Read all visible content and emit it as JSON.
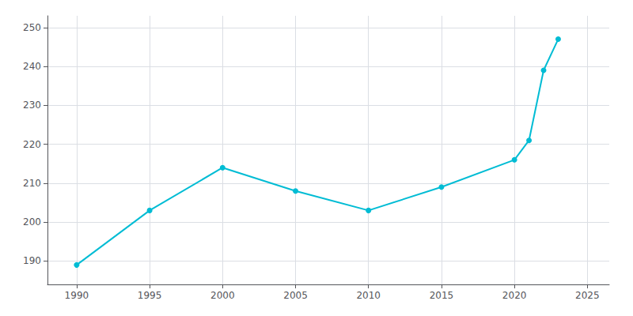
{
  "chart_data": {
    "type": "line",
    "x": [
      1990,
      1995,
      2000,
      2005,
      2010,
      2015,
      2020,
      2021,
      2022,
      2023
    ],
    "values": [
      189,
      203,
      214,
      208,
      203,
      209,
      216,
      221,
      239,
      247
    ],
    "color": "#00bcd4",
    "marker": "circle",
    "xlim": [
      1988,
      2026.5
    ],
    "ylim": [
      184,
      253
    ],
    "xticks": [
      1990,
      1995,
      2000,
      2005,
      2010,
      2015,
      2020,
      2025
    ],
    "yticks": [
      190,
      200,
      210,
      220,
      230,
      240,
      250
    ],
    "grid": true
  }
}
